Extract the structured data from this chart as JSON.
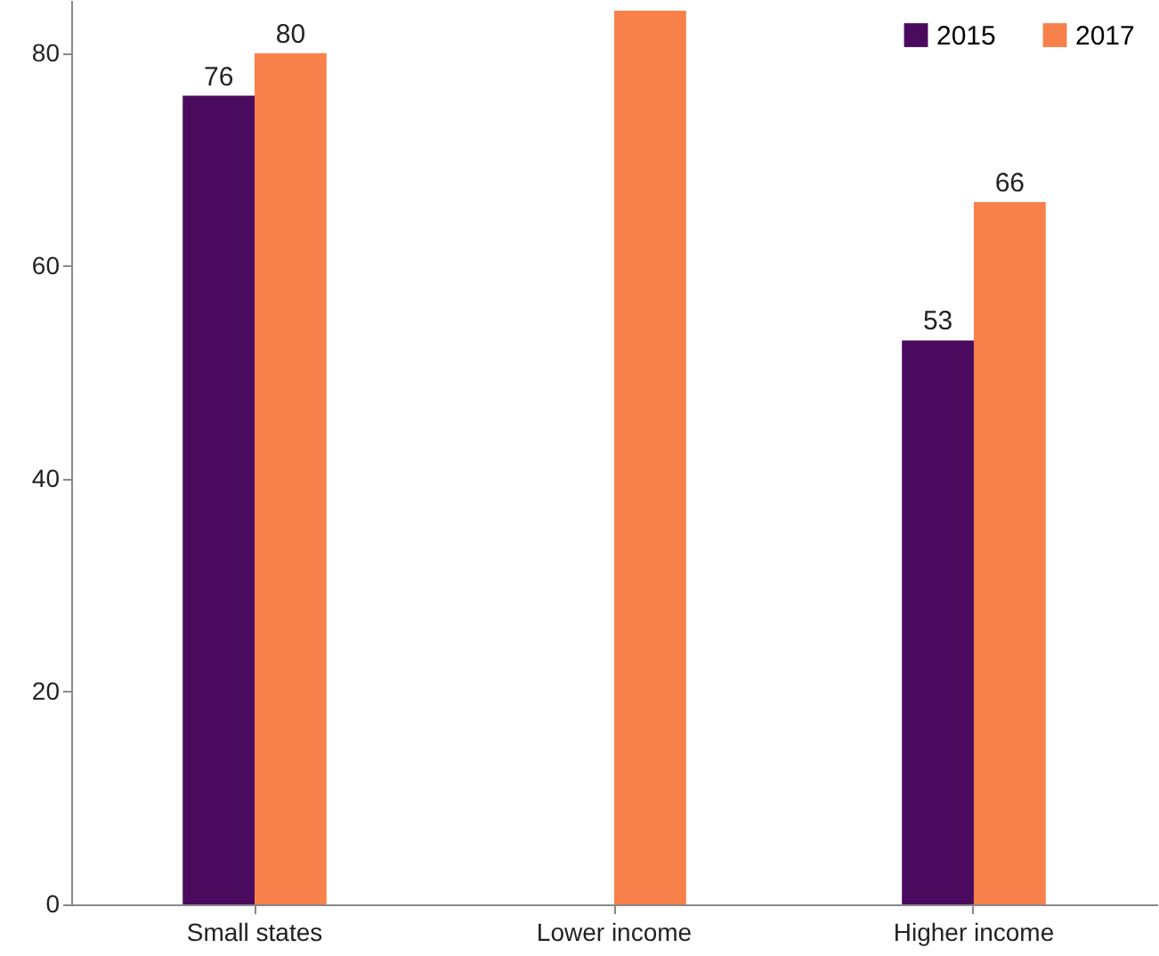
{
  "chart_data": {
    "type": "bar",
    "categories": [
      "Small states",
      "Lower income",
      "Higher income"
    ],
    "series": [
      {
        "name": "2015",
        "color": "#4a0a5e",
        "values": [
          76,
          null,
          53
        ],
        "value_labels": [
          "76",
          null,
          "53"
        ]
      },
      {
        "name": "2017",
        "color": "#f8804a",
        "values": [
          80,
          84,
          66
        ],
        "value_labels": [
          "80",
          null,
          "66"
        ]
      }
    ],
    "ylim": [
      0,
      85
    ],
    "yticks": [
      0,
      20,
      40,
      60,
      80
    ],
    "grid": false,
    "legend": "top right"
  }
}
